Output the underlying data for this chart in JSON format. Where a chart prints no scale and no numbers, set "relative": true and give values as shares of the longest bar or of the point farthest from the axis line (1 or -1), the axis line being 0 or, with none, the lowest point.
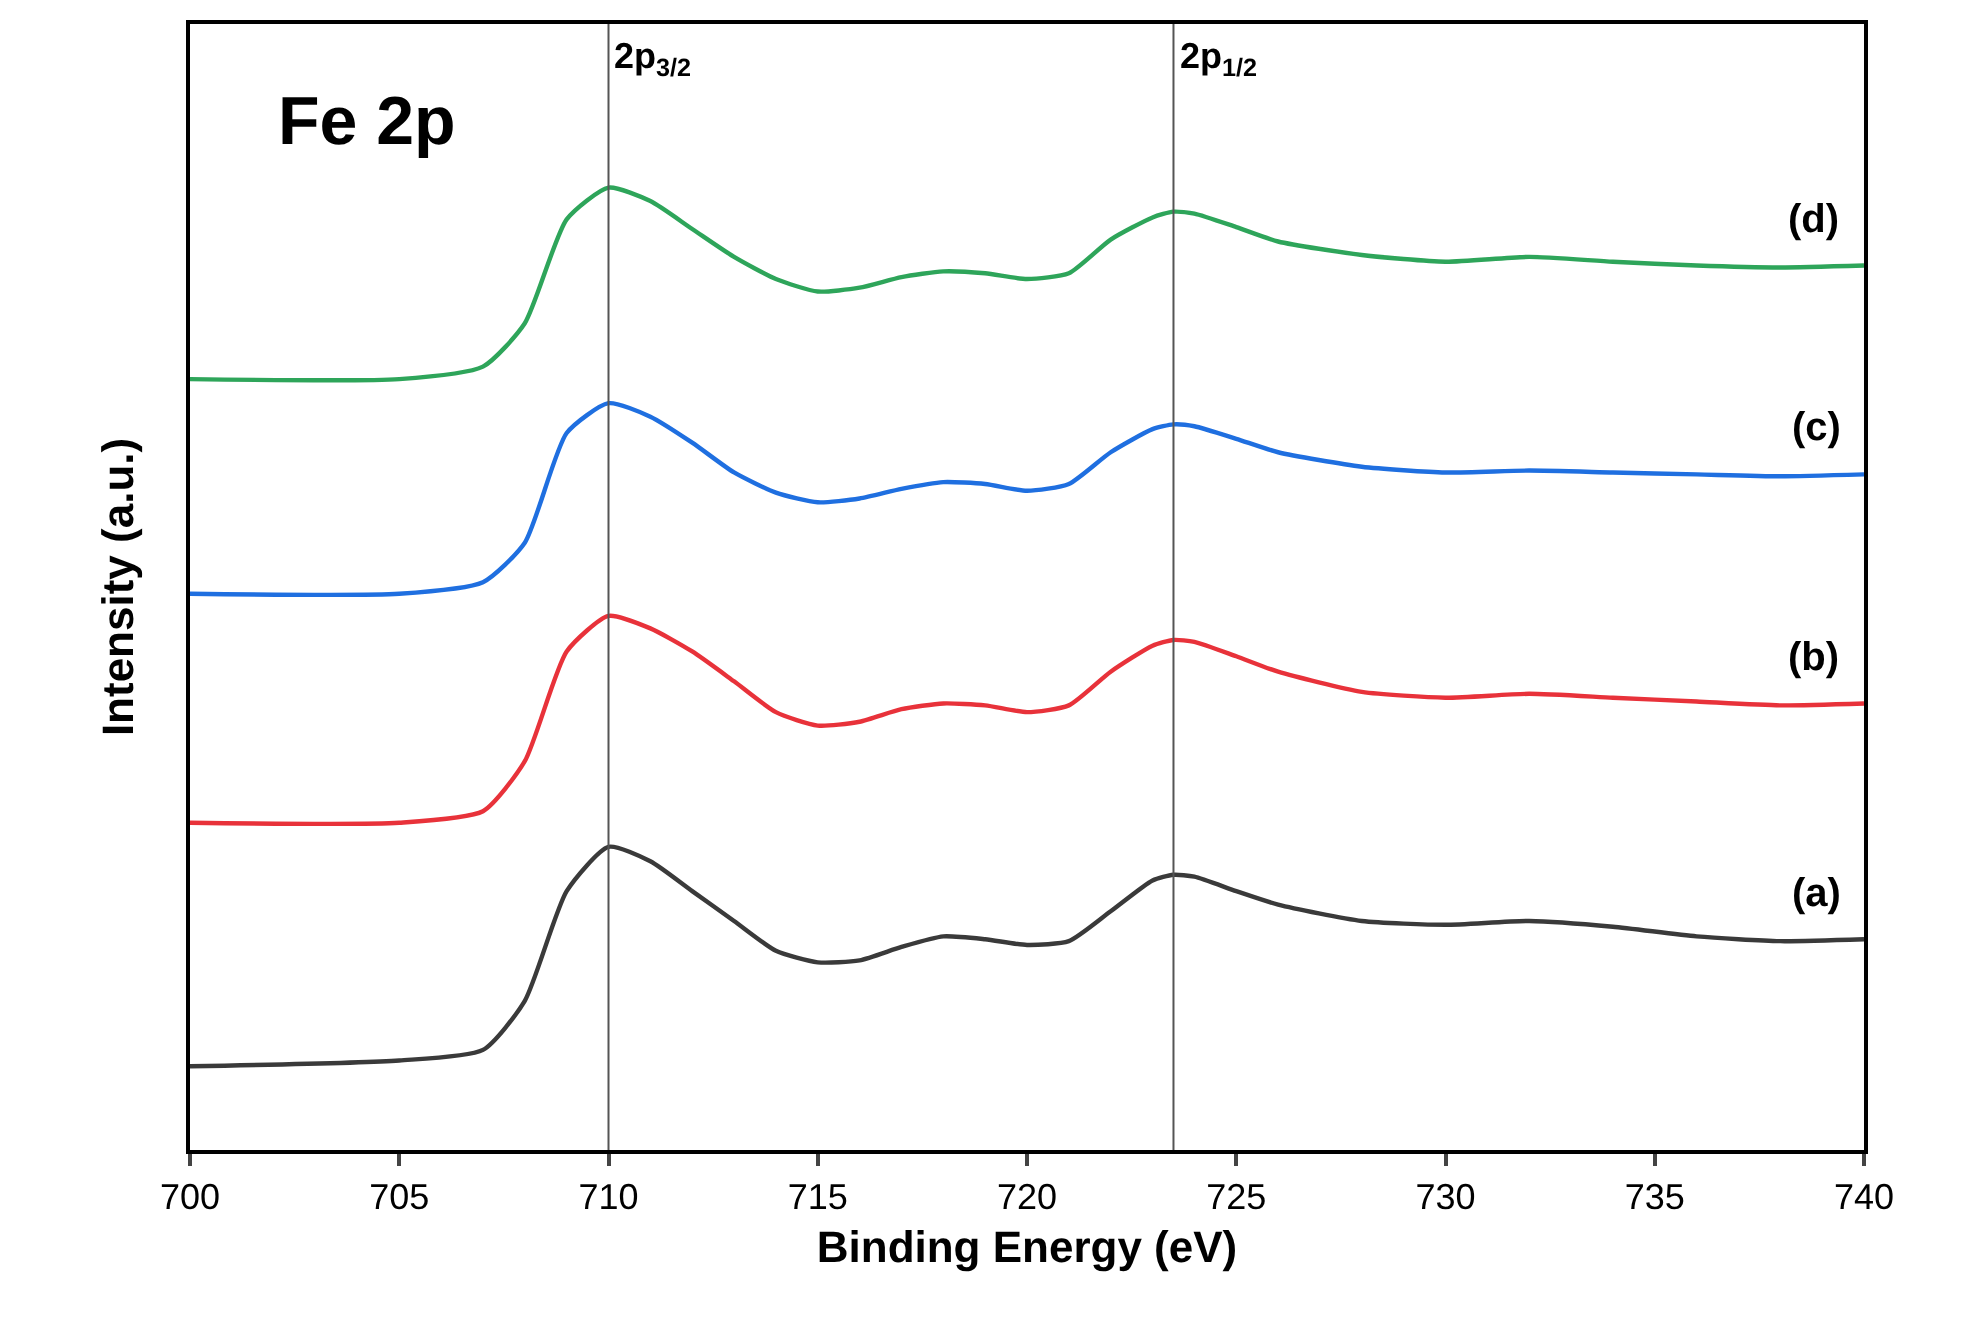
{
  "chart_data": {
    "type": "line",
    "relative": true,
    "xlabel": "Binding Energy (eV)",
    "ylabel": "Intensity (a.u.)",
    "x": [
      700,
      705,
      707,
      708,
      709,
      710,
      711,
      712,
      713,
      714,
      715,
      716,
      717,
      718,
      719,
      720,
      721,
      722,
      723,
      723.5,
      724,
      725,
      726,
      728,
      730,
      732,
      734,
      736,
      738,
      740
    ],
    "xlim": [
      700,
      740
    ],
    "xticks": [
      700,
      705,
      710,
      715,
      720,
      725,
      730,
      735,
      740
    ],
    "tick_labels": "x",
    "series": [
      {
        "name": "(a)",
        "color": "#3a3a3a",
        "values": [
          0.087,
          0.093,
          0.104,
          0.155,
          0.269,
          0.315,
          0.3,
          0.269,
          0.238,
          0.207,
          0.195,
          0.197,
          0.211,
          0.222,
          0.219,
          0.213,
          0.217,
          0.248,
          0.28,
          0.286,
          0.284,
          0.269,
          0.255,
          0.238,
          0.234,
          0.238,
          0.232,
          0.222,
          0.217,
          0.219
        ]
      },
      {
        "name": "(b)",
        "color": "#e8323a",
        "values": [
          0.34,
          0.34,
          0.352,
          0.404,
          0.518,
          0.555,
          0.542,
          0.518,
          0.487,
          0.455,
          0.441,
          0.445,
          0.458,
          0.464,
          0.462,
          0.455,
          0.462,
          0.497,
          0.524,
          0.53,
          0.528,
          0.513,
          0.497,
          0.476,
          0.47,
          0.474,
          0.47,
          0.466,
          0.462,
          0.464
        ]
      },
      {
        "name": "(c)",
        "color": "#1f6fe0",
        "values": [
          0.578,
          0.578,
          0.59,
          0.631,
          0.745,
          0.776,
          0.762,
          0.735,
          0.704,
          0.683,
          0.673,
          0.677,
          0.687,
          0.694,
          0.692,
          0.685,
          0.692,
          0.725,
          0.749,
          0.754,
          0.752,
          0.739,
          0.725,
          0.71,
          0.704,
          0.706,
          0.704,
          0.702,
          0.7,
          0.702
        ]
      },
      {
        "name": "(d)",
        "color": "#2ea55a",
        "values": [
          0.801,
          0.801,
          0.814,
          0.859,
          0.967,
          1,
          0.986,
          0.957,
          0.928,
          0.905,
          0.892,
          0.896,
          0.907,
          0.913,
          0.911,
          0.905,
          0.911,
          0.946,
          0.969,
          0.975,
          0.973,
          0.959,
          0.944,
          0.93,
          0.923,
          0.928,
          0.923,
          0.919,
          0.917,
          0.919
        ]
      }
    ],
    "ref_lines": [
      {
        "axis": "x",
        "value": 710,
        "label": "2p$_{3/2}$",
        "color": "#555555"
      },
      {
        "axis": "x",
        "value": 723.5,
        "label": "2p$_{1/2}$",
        "color": "#555555"
      }
    ],
    "annotations": [
      "Fe 2p"
    ]
  }
}
